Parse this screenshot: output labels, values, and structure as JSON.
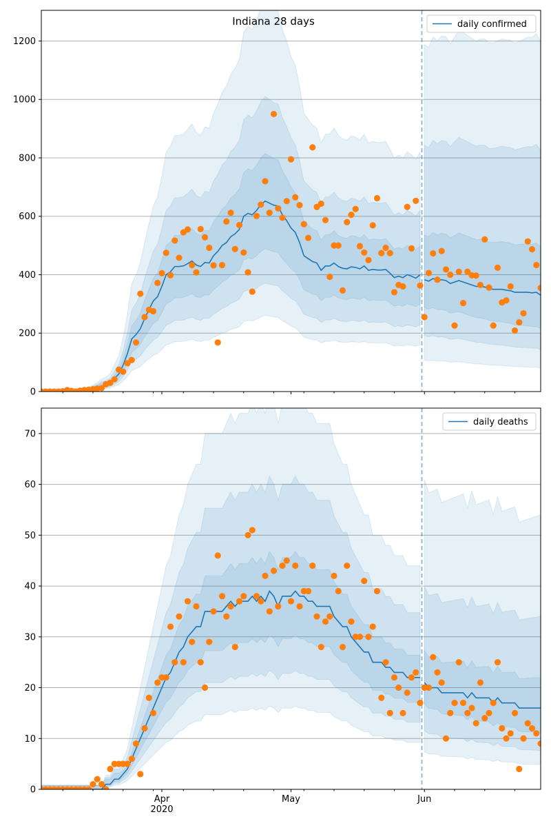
{
  "chart_data": [
    {
      "type": "line",
      "title": "Indiana 28 days",
      "legend": {
        "label": "daily confirmed",
        "placement": "top-right"
      },
      "xlabel": "",
      "ylabel": "",
      "x_start_date": "2020-03-04",
      "x_range_days": [
        0,
        116
      ],
      "forecast_start_day": 88,
      "ylim": [
        0,
        1305
      ],
      "yticks": [
        0,
        200,
        400,
        600,
        800,
        1000,
        1200
      ],
      "xticks": [
        {
          "day": 28,
          "label": "Apr",
          "sublabel": "2020"
        },
        {
          "day": 58,
          "label": "May"
        },
        {
          "day": 89,
          "label": "Jun"
        }
      ],
      "minor_tick_days": [
        5,
        12,
        19,
        26,
        33,
        40,
        47,
        54,
        61,
        68,
        75,
        82,
        96,
        103,
        110
      ],
      "grid": "horizontal",
      "observed": [
        0,
        0,
        0,
        0,
        0,
        1,
        5,
        2,
        0,
        3,
        5,
        6,
        8,
        10,
        12,
        25,
        30,
        42,
        75,
        68,
        97,
        108,
        168,
        335,
        255,
        280,
        275,
        372,
        405,
        475,
        398,
        517,
        458,
        545,
        555,
        433,
        408,
        556,
        528,
        492,
        432,
        168,
        433,
        582,
        612,
        488,
        570,
        476,
        408,
        342,
        601,
        640,
        720,
        612,
        950,
        627,
        595,
        652,
        795,
        665,
        638,
        573,
        526,
        836,
        632,
        643,
        587,
        393,
        500,
        500,
        346,
        580,
        605,
        625,
        498,
        476,
        450,
        569,
        662,
        474,
        492,
        474,
        340,
        365,
        360,
        632,
        490,
        653,
        363,
        255,
        406,
        473,
        383,
        481,
        418,
        400,
        226,
        410,
        303,
        410,
        398,
        397,
        365,
        521,
        356,
        226,
        424,
        305,
        312,
        360,
        209,
        237,
        268,
        514,
        487,
        433,
        355
      ],
      "median": [
        0,
        0,
        0,
        0,
        0,
        1,
        1,
        1,
        2,
        2,
        3,
        5,
        8,
        12,
        18,
        24,
        30,
        45,
        60,
        90,
        130,
        180,
        195,
        215,
        250,
        280,
        310,
        325,
        360,
        400,
        410,
        428,
        428,
        430,
        438,
        447,
        433,
        428,
        442,
        440,
        465,
        480,
        500,
        510,
        530,
        540,
        555,
        600,
        610,
        605,
        620,
        640,
        652,
        645,
        638,
        635,
        605,
        585,
        560,
        545,
        510,
        465,
        455,
        445,
        440,
        415,
        430,
        430,
        440,
        428,
        422,
        420,
        427,
        425,
        420,
        430,
        415,
        418,
        416,
        416,
        418,
        405,
        390,
        395,
        390,
        400,
        395,
        388,
        400,
        383,
        378,
        387,
        380,
        383,
        380,
        370,
        375,
        380,
        375,
        370,
        365,
        360,
        360,
        358,
        352,
        350,
        350,
        350,
        347,
        345,
        340,
        340,
        340,
        340,
        338,
        340,
        330
      ],
      "band_factors": [
        [
          0.75,
          1.25
        ],
        [
          0.57,
          1.55
        ],
        [
          0.4,
          2.05
        ]
      ],
      "forecast_band_factors": [
        [
          0.75,
          1.4
        ],
        [
          0.5,
          2.2
        ],
        [
          0.28,
          3.1
        ]
      ]
    },
    {
      "type": "line",
      "title": "",
      "legend": {
        "label": "daily deaths",
        "placement": "top-right"
      },
      "xlabel": "",
      "ylabel": "",
      "x_start_date": "2020-03-04",
      "x_range_days": [
        0,
        116
      ],
      "forecast_start_day": 88,
      "ylim": [
        0,
        75
      ],
      "yticks": [
        0,
        10,
        20,
        30,
        40,
        50,
        60,
        70
      ],
      "xticks": [
        {
          "day": 28,
          "label": "Apr",
          "sublabel": "2020"
        },
        {
          "day": 58,
          "label": "May"
        },
        {
          "day": 89,
          "label": "Jun"
        }
      ],
      "minor_tick_days": [
        5,
        12,
        19,
        26,
        33,
        40,
        47,
        54,
        61,
        68,
        75,
        82,
        96,
        103,
        110
      ],
      "grid": "horizontal",
      "observed": [
        0,
        0,
        0,
        0,
        0,
        0,
        0,
        0,
        0,
        0,
        0,
        0,
        1,
        2,
        1,
        0,
        4,
        5,
        5,
        5,
        5,
        6,
        9,
        3,
        12,
        18,
        15,
        21,
        22,
        22,
        32,
        25,
        34,
        25,
        37,
        29,
        36,
        25,
        20,
        29,
        35,
        46,
        38,
        34,
        36,
        28,
        37,
        38,
        50,
        51,
        38,
        37,
        42,
        35,
        43,
        36,
        44,
        45,
        37,
        44,
        36,
        39,
        39,
        44,
        34,
        28,
        33,
        34,
        42,
        39,
        28,
        44,
        33,
        30,
        30,
        41,
        30,
        32,
        39,
        18,
        25,
        15,
        22,
        20,
        15,
        19,
        22,
        23,
        17,
        20,
        20,
        26,
        23,
        21,
        10,
        15,
        17,
        25,
        17,
        15,
        16,
        13,
        21,
        14,
        15,
        17,
        25,
        12,
        10,
        11,
        15,
        4,
        10,
        13,
        12,
        11,
        9
      ],
      "median": [
        0,
        0,
        0,
        0,
        0,
        0,
        0,
        0,
        0,
        0,
        0,
        0,
        0,
        0,
        0,
        1,
        1,
        2,
        2,
        3,
        4,
        6,
        8,
        10,
        12,
        14,
        16,
        18,
        20,
        22,
        23,
        25,
        27,
        28,
        30,
        31,
        32,
        32,
        35,
        35,
        35,
        35,
        35,
        36,
        37,
        36,
        37,
        37,
        37,
        38,
        37,
        38,
        37,
        39,
        38,
        36,
        38,
        38,
        38,
        39,
        38,
        38,
        37,
        37,
        36,
        36,
        36,
        36,
        34,
        33,
        32,
        32,
        30,
        29,
        28,
        27,
        27,
        25,
        25,
        25,
        24,
        24,
        23,
        23,
        23,
        22,
        22,
        22,
        22,
        21,
        20,
        20,
        20,
        19,
        19,
        19,
        19,
        19,
        19,
        18,
        19,
        18,
        18,
        18,
        18,
        17,
        18,
        17,
        17,
        17,
        17,
        16,
        16,
        16,
        16,
        16,
        16
      ],
      "band_factors": [
        [
          0.78,
          1.2
        ],
        [
          0.6,
          1.58
        ],
        [
          0.42,
          2.0
        ]
      ],
      "forecast_band_factors": [
        [
          0.8,
          1.3
        ],
        [
          0.55,
          1.9
        ],
        [
          0.35,
          2.9
        ]
      ]
    }
  ],
  "colors": {
    "line": "#1f77b4",
    "observed": "#ff7f0e",
    "band": "#1f77b4",
    "grid": "#b0b0b0"
  }
}
